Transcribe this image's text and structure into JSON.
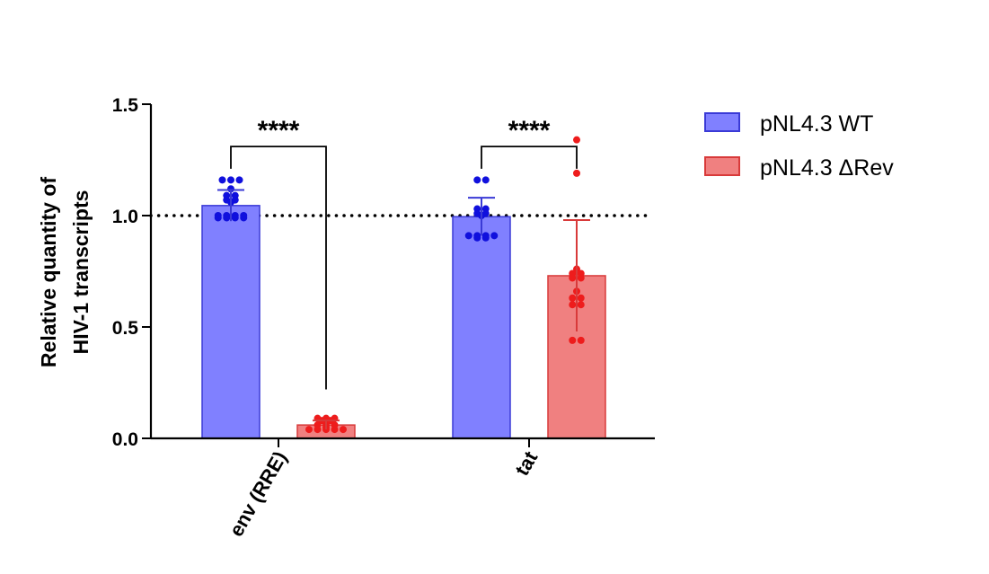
{
  "chart_data": {
    "type": "bar",
    "ylabel_lines": [
      "Relative quantity of",
      "HIV-1 transcripts"
    ],
    "ylim": [
      0,
      1.5
    ],
    "yticks": [
      0.0,
      0.5,
      1.0,
      1.5
    ],
    "ytick_labels": [
      "0.0",
      "0.5",
      "1.0",
      "1.5"
    ],
    "reference_line": 1.0,
    "categories": [
      "env (RRE)",
      "tat"
    ],
    "colors": {
      "wt_fill": "#8080ff",
      "wt_edge": "#3a3ad6",
      "wt_points": "#1010dd",
      "drev_fill": "#f08080",
      "drev_edge": "#d83a3a",
      "drev_points": "#ee1c1c"
    },
    "series": [
      {
        "name": "pNL4.3 WT",
        "values": [
          1.045,
          0.995
        ],
        "error": [
          0.07,
          0.085
        ],
        "points": [
          [
            1.16,
            1.16,
            1.16,
            1.09,
            1.09,
            1.12,
            1.07,
            1.07,
            1.06,
            1.0,
            1.0,
            1.0,
            1.0,
            0.99,
            0.99,
            0.99,
            0.99
          ],
          [
            1.16,
            1.16,
            1.03,
            1.03,
            1.01,
            1.01,
            1.0,
            0.91,
            0.91,
            0.91,
            0.91,
            0.9,
            0.9
          ]
        ]
      },
      {
        "name": "pNL4.3 ΔRev",
        "values": [
          0.06,
          0.73
        ],
        "error": [
          0.02,
          0.25
        ],
        "points": [
          [
            0.09,
            0.09,
            0.09,
            0.08,
            0.08,
            0.06,
            0.06,
            0.06,
            0.05,
            0.04,
            0.04,
            0.04,
            0.04,
            0.04
          ],
          [
            1.34,
            1.19,
            0.76,
            0.74,
            0.74,
            0.72,
            0.72,
            0.66,
            0.63,
            0.63,
            0.6,
            0.6,
            0.44,
            0.44
          ]
        ]
      }
    ],
    "annotations": [
      {
        "text": "****",
        "between": [
          "pNL4.3 WT",
          "pNL4.3 ΔRev"
        ],
        "category": "env (RRE)"
      },
      {
        "text": "****",
        "between": [
          "pNL4.3 WT",
          "pNL4.3 ΔRev"
        ],
        "category": "tat"
      }
    ],
    "legend": {
      "position": "top-right",
      "entries": [
        "pNL4.3 WT",
        "pNL4.3 ΔRev"
      ]
    },
    "grid": false
  }
}
